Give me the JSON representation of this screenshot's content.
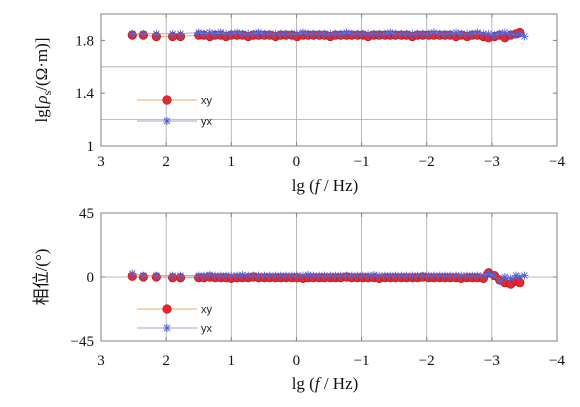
{
  "chart_data": [
    {
      "type": "scatter",
      "xlabel": {
        "prefix": "lg (",
        "symbol": "f",
        "suffix": " / Hz)"
      },
      "ylabel": {
        "prefix": "lg[",
        "symbol": "ρ",
        "subscript": "s",
        "suffix": "/(Ω·m)]"
      },
      "xlim": [
        3,
        -4
      ],
      "ylim": [
        1,
        2
      ],
      "xticks": [
        3,
        2,
        1,
        0,
        -1,
        -2,
        -3,
        -4
      ],
      "xtick_labels": [
        "3",
        "2",
        "1",
        "0",
        "−1",
        "−2",
        "−3",
        "−4"
      ],
      "yticks": [
        1,
        1.4,
        1.8
      ],
      "ytick_labels": [
        "1",
        "1.4",
        "1.8"
      ],
      "ygrid": [
        1.2,
        1.6
      ],
      "grid": true,
      "legend": "lower-left",
      "series": [
        {
          "name": "xy",
          "marker": "filled-circle",
          "color": "#e8262d",
          "line_color": "#f6a66a",
          "x": [
            2.52,
            2.35,
            2.15,
            1.9,
            1.78,
            1.5,
            1.42,
            1.33,
            1.25,
            1.16,
            1.08,
            1.0,
            0.91,
            0.83,
            0.74,
            0.66,
            0.58,
            0.49,
            0.41,
            0.32,
            0.24,
            0.16,
            0.07,
            -0.01,
            -0.1,
            -0.18,
            -0.26,
            -0.35,
            -0.43,
            -0.52,
            -0.6,
            -0.68,
            -0.77,
            -0.85,
            -0.94,
            -1.02,
            -1.1,
            -1.19,
            -1.27,
            -1.36,
            -1.44,
            -1.52,
            -1.61,
            -1.69,
            -1.78,
            -1.86,
            -1.94,
            -2.03,
            -2.11,
            -2.2,
            -2.28,
            -2.36,
            -2.45,
            -2.53,
            -2.62,
            -2.7,
            -2.78,
            -2.87,
            -2.95,
            -3.04,
            -3.12,
            -3.2,
            -3.29,
            -3.37,
            -3.43
          ],
          "y": [
            1.84,
            1.84,
            1.83,
            1.83,
            1.83,
            1.84,
            1.84,
            1.83,
            1.84,
            1.84,
            1.83,
            1.84,
            1.84,
            1.84,
            1.83,
            1.84,
            1.84,
            1.84,
            1.84,
            1.83,
            1.84,
            1.84,
            1.84,
            1.83,
            1.84,
            1.84,
            1.84,
            1.84,
            1.84,
            1.83,
            1.84,
            1.84,
            1.84,
            1.84,
            1.84,
            1.84,
            1.83,
            1.84,
            1.84,
            1.84,
            1.84,
            1.84,
            1.84,
            1.84,
            1.83,
            1.84,
            1.84,
            1.84,
            1.84,
            1.84,
            1.84,
            1.84,
            1.83,
            1.84,
            1.83,
            1.84,
            1.84,
            1.83,
            1.82,
            1.83,
            1.84,
            1.82,
            1.84,
            1.85,
            1.86
          ]
        },
        {
          "name": "yx",
          "marker": "asterisk",
          "color": "#4d63d3",
          "line_color": "#9aa9e8",
          "x": [
            2.52,
            2.35,
            2.15,
            1.9,
            1.78,
            1.5,
            1.42,
            1.33,
            1.25,
            1.16,
            1.08,
            1.0,
            0.91,
            0.83,
            0.74,
            0.66,
            0.58,
            0.49,
            0.41,
            0.32,
            0.24,
            0.16,
            0.07,
            -0.01,
            -0.1,
            -0.18,
            -0.26,
            -0.35,
            -0.43,
            -0.52,
            -0.6,
            -0.68,
            -0.77,
            -0.85,
            -0.94,
            -1.02,
            -1.1,
            -1.19,
            -1.27,
            -1.36,
            -1.44,
            -1.52,
            -1.61,
            -1.69,
            -1.78,
            -1.86,
            -1.94,
            -2.03,
            -2.11,
            -2.2,
            -2.28,
            -2.36,
            -2.45,
            -2.53,
            -2.62,
            -2.7,
            -2.78,
            -2.87,
            -2.95,
            -3.04,
            -3.12,
            -3.2,
            -3.29,
            -3.37,
            -3.43,
            -3.5
          ],
          "y": [
            1.85,
            1.85,
            1.85,
            1.85,
            1.85,
            1.86,
            1.85,
            1.86,
            1.85,
            1.86,
            1.85,
            1.85,
            1.86,
            1.85,
            1.85,
            1.85,
            1.86,
            1.85,
            1.85,
            1.85,
            1.85,
            1.85,
            1.85,
            1.85,
            1.86,
            1.85,
            1.85,
            1.85,
            1.85,
            1.85,
            1.85,
            1.85,
            1.86,
            1.85,
            1.85,
            1.85,
            1.85,
            1.85,
            1.85,
            1.85,
            1.86,
            1.85,
            1.85,
            1.85,
            1.85,
            1.85,
            1.85,
            1.85,
            1.86,
            1.85,
            1.85,
            1.85,
            1.86,
            1.85,
            1.85,
            1.85,
            1.86,
            1.85,
            1.85,
            1.84,
            1.85,
            1.86,
            1.85,
            1.84,
            1.85,
            1.83
          ]
        }
      ]
    },
    {
      "type": "scatter",
      "xlabel": {
        "prefix": "lg (",
        "symbol": "f",
        "suffix": " / Hz)"
      },
      "ylabel": {
        "prefix": "相位/(°)"
      },
      "xlim": [
        3,
        -4
      ],
      "ylim": [
        -45,
        45
      ],
      "xticks": [
        3,
        2,
        1,
        0,
        -1,
        -2,
        -3,
        -4
      ],
      "xtick_labels": [
        "3",
        "2",
        "1",
        "0",
        "−1",
        "−2",
        "−3",
        "−4"
      ],
      "yticks": [
        -45,
        0,
        45
      ],
      "ytick_labels": [
        "−45",
        "0",
        "45"
      ],
      "ygrid": [
        0
      ],
      "grid": true,
      "legend": "lower-left",
      "series": [
        {
          "name": "xy",
          "marker": "filled-circle",
          "color": "#e8262d",
          "line_color": "#f6a66a",
          "x": [
            2.52,
            2.35,
            2.15,
            1.9,
            1.78,
            1.5,
            1.42,
            1.33,
            1.25,
            1.16,
            1.08,
            1.0,
            0.91,
            0.83,
            0.74,
            0.66,
            0.58,
            0.49,
            0.41,
            0.32,
            0.24,
            0.16,
            0.07,
            -0.01,
            -0.1,
            -0.18,
            -0.26,
            -0.35,
            -0.43,
            -0.52,
            -0.6,
            -0.68,
            -0.77,
            -0.85,
            -0.94,
            -1.02,
            -1.1,
            -1.19,
            -1.27,
            -1.36,
            -1.44,
            -1.52,
            -1.61,
            -1.69,
            -1.78,
            -1.86,
            -1.94,
            -2.03,
            -2.11,
            -2.2,
            -2.28,
            -2.36,
            -2.45,
            -2.53,
            -2.62,
            -2.7,
            -2.78,
            -2.87,
            -2.95,
            -3.04,
            -3.12,
            -3.2,
            -3.29,
            -3.37,
            -3.43
          ],
          "y": [
            0.5,
            0,
            0,
            -0.5,
            -0.5,
            -0.5,
            -0.5,
            0,
            -0.5,
            -0.5,
            -0.5,
            -1,
            -0.5,
            -0.5,
            -0.5,
            0,
            -0.5,
            -0.5,
            -0.5,
            -0.5,
            -0.5,
            -0.5,
            -0.5,
            -0.5,
            -1,
            -0.5,
            -0.5,
            -0.5,
            -0.5,
            -0.5,
            -0.5,
            -0.5,
            0,
            -0.5,
            -0.5,
            -0.5,
            -0.5,
            -0.5,
            -1,
            -0.5,
            -0.5,
            -0.5,
            -0.5,
            -0.5,
            -0.5,
            -0.5,
            0,
            -0.5,
            -0.5,
            -0.5,
            -0.5,
            -0.5,
            -0.5,
            -1,
            -0.5,
            -0.5,
            -0.5,
            -1,
            3,
            1,
            -2,
            -4,
            -5,
            -3,
            -4
          ]
        },
        {
          "name": "yx",
          "marker": "asterisk",
          "color": "#4d63d3",
          "line_color": "#9aa9e8",
          "x": [
            2.52,
            2.35,
            2.15,
            1.9,
            1.78,
            1.5,
            1.42,
            1.33,
            1.25,
            1.16,
            1.08,
            1.0,
            0.91,
            0.83,
            0.74,
            0.66,
            0.58,
            0.49,
            0.41,
            0.32,
            0.24,
            0.16,
            0.07,
            -0.01,
            -0.1,
            -0.18,
            -0.26,
            -0.35,
            -0.43,
            -0.52,
            -0.6,
            -0.68,
            -0.77,
            -0.85,
            -0.94,
            -1.02,
            -1.1,
            -1.19,
            -1.27,
            -1.36,
            -1.44,
            -1.52,
            -1.61,
            -1.69,
            -1.78,
            -1.86,
            -1.94,
            -2.03,
            -2.11,
            -2.2,
            -2.28,
            -2.36,
            -2.45,
            -2.53,
            -2.62,
            -2.7,
            -2.78,
            -2.87,
            -2.95,
            -3.04,
            -3.12,
            -3.2,
            -3.29,
            -3.37,
            -3.43,
            -3.5
          ],
          "y": [
            2.5,
            1,
            1,
            1,
            1,
            1,
            1,
            1.5,
            1,
            1,
            1,
            1,
            1,
            1.5,
            1,
            1,
            1,
            1,
            1,
            1,
            1,
            1,
            1,
            1,
            1,
            1.5,
            1,
            1,
            1,
            1,
            1,
            1,
            1,
            1,
            1,
            1,
            1,
            1.5,
            1,
            1,
            1,
            1,
            1,
            1,
            1,
            1,
            1,
            1,
            1,
            1,
            1,
            1,
            1,
            1,
            1,
            1,
            1,
            1,
            2,
            1,
            -3,
            0,
            -1,
            1,
            0,
            1
          ]
        }
      ]
    }
  ]
}
